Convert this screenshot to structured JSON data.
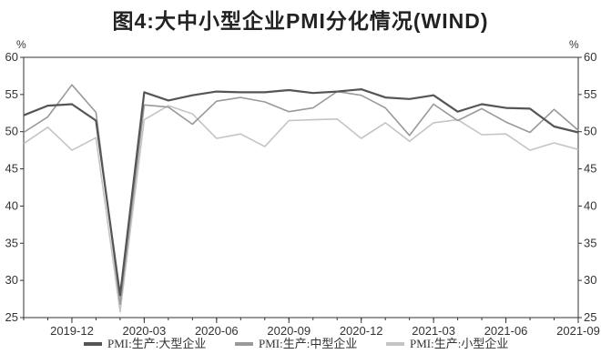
{
  "chart_data": {
    "type": "line",
    "title": "图4:大中小型企业PMI分化情况(WIND)",
    "left_unit": "%",
    "right_unit": "%",
    "ylim": [
      25,
      60
    ],
    "yticks": [
      25,
      30,
      35,
      40,
      45,
      50,
      55,
      60
    ],
    "x": [
      "2019-10",
      "2019-11",
      "2019-12",
      "2020-01",
      "2020-02",
      "2020-03",
      "2020-04",
      "2020-05",
      "2020-06",
      "2020-07",
      "2020-08",
      "2020-09",
      "2020-10",
      "2020-11",
      "2020-12",
      "2021-01",
      "2021-02",
      "2021-03",
      "2021-04",
      "2021-05",
      "2021-06",
      "2021-07",
      "2021-08",
      "2021-09"
    ],
    "xtick_labels": [
      "2019-12",
      "2020-03",
      "2020-06",
      "2020-09",
      "2020-12",
      "2021-03",
      "2021-06",
      "2021-09"
    ],
    "series": [
      {
        "name": "PMI:生产:大型企业",
        "color": "#555555",
        "values": [
          52.2,
          53.5,
          53.7,
          51.5,
          28.0,
          55.3,
          54.2,
          54.9,
          55.4,
          55.3,
          55.3,
          55.6,
          55.2,
          55.4,
          55.7,
          54.6,
          54.4,
          54.9,
          52.7,
          53.7,
          53.2,
          53.1,
          50.7,
          49.9
        ],
        "width": 2.2
      },
      {
        "name": "PMI:生产:中型企业",
        "color": "#999999",
        "values": [
          49.9,
          52.0,
          56.3,
          52.6,
          26.8,
          53.6,
          53.3,
          51.0,
          54.1,
          54.6,
          54.0,
          52.7,
          53.2,
          55.4,
          54.9,
          53.2,
          49.5,
          53.7,
          51.5,
          53.1,
          51.3,
          49.9,
          53.0,
          50.2
        ],
        "width": 1.6
      },
      {
        "name": "PMI:生产:小型企业",
        "color": "#c4c4c4",
        "values": [
          48.4,
          50.6,
          47.5,
          49.2,
          25.8,
          51.6,
          53.5,
          52.4,
          49.1,
          49.7,
          48.0,
          51.5,
          51.6,
          51.7,
          49.1,
          51.2,
          48.7,
          51.2,
          51.6,
          49.6,
          49.7,
          47.5,
          48.5,
          47.6
        ],
        "width": 1.6
      }
    ]
  }
}
